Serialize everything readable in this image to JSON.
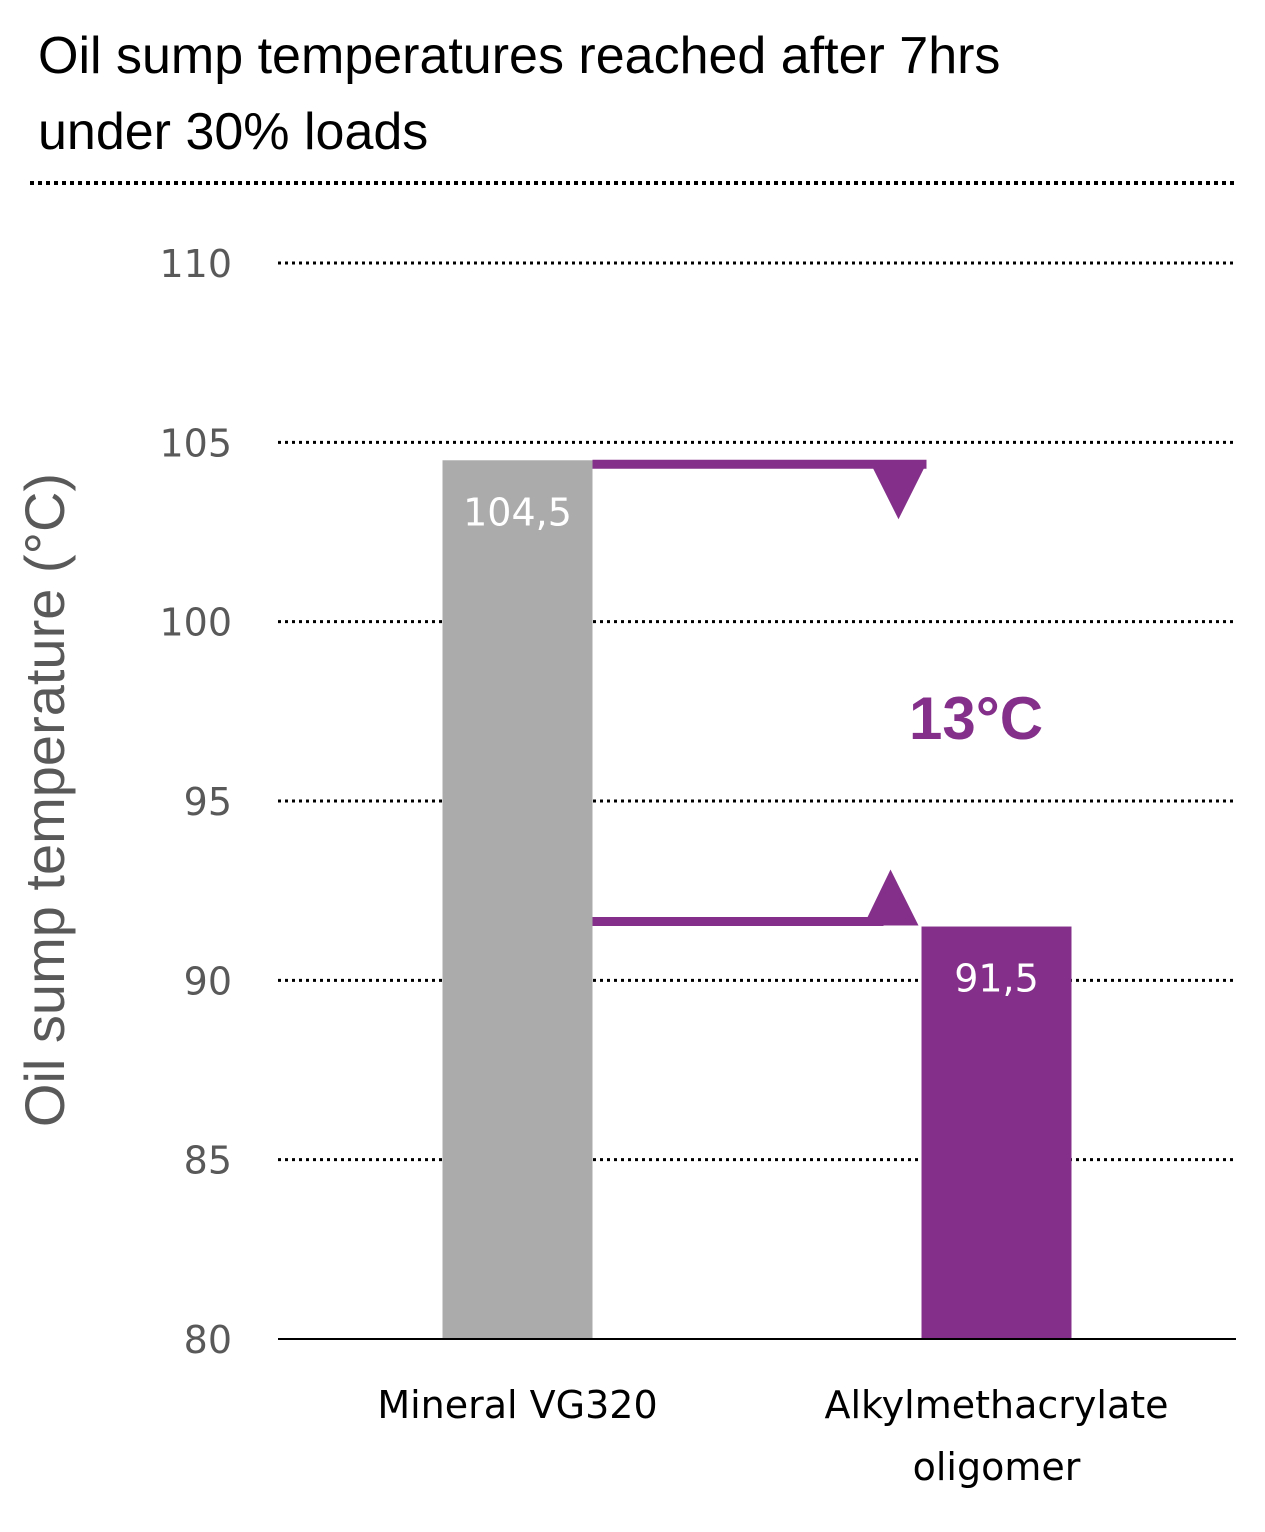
{
  "chart_data": {
    "type": "bar",
    "title_lines": [
      "Oil sump temperatures reached after 7hrs",
      "under 30% loads"
    ],
    "ylabel": "Oil sump temperature (°C)",
    "ylim": [
      80,
      110
    ],
    "yticks": [
      80,
      85,
      90,
      95,
      100,
      105,
      110
    ],
    "ytick_labels": [
      "80",
      "85",
      "90",
      "95",
      "100",
      "105",
      "110"
    ],
    "grid": true,
    "categories": [
      {
        "lines": [
          "Mineral VG320"
        ]
      },
      {
        "lines": [
          "Alkylmethacrylate",
          "oligomer"
        ]
      }
    ],
    "values": [
      104.5,
      91.5
    ],
    "value_labels": [
      "104,5",
      "91,5"
    ],
    "colors": [
      "#ababab",
      "#84308a"
    ],
    "annotation": {
      "text": "13°C",
      "color": "#84308a",
      "from": 104.5,
      "to": 91.5
    }
  }
}
